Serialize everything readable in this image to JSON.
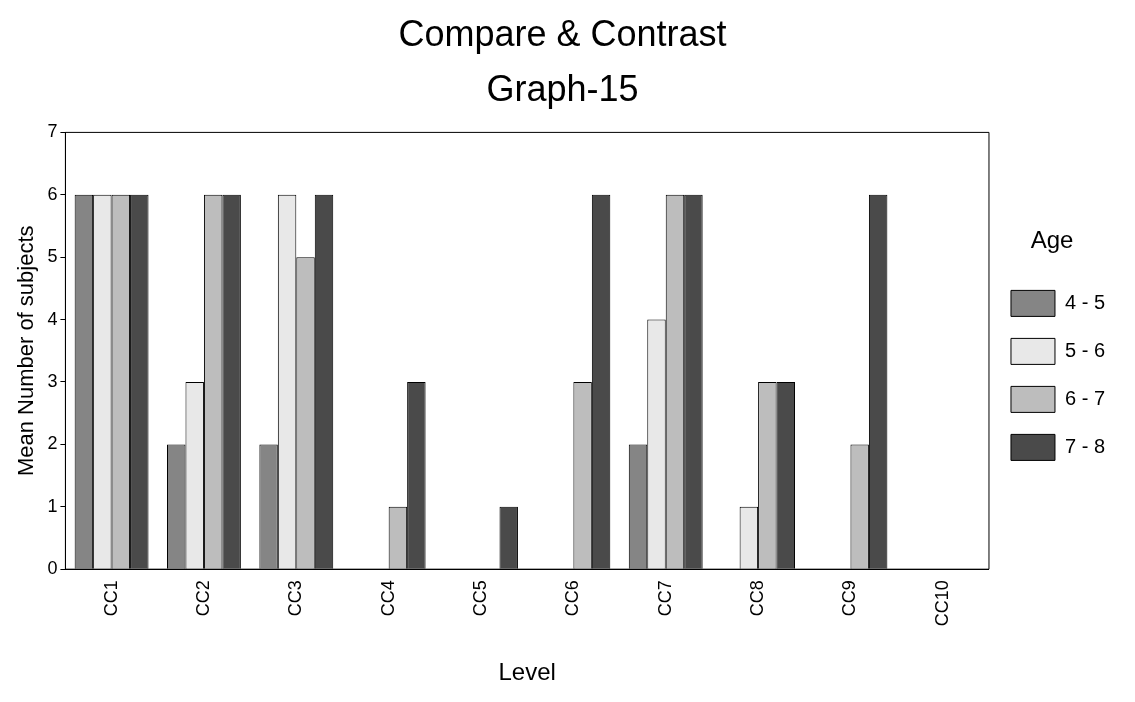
{
  "chart_data": {
    "type": "bar",
    "title": "Compare & Contrast",
    "subtitle": "Graph-15",
    "xlabel": "Level",
    "ylabel": "Mean Number of subjects",
    "legend_title": "Age",
    "categories": [
      "CC1",
      "CC2",
      "CC3",
      "CC4",
      "CC5",
      "CC6",
      "CC7",
      "CC8",
      "CC9",
      "CC10"
    ],
    "series": [
      {
        "name": "4 - 5",
        "color": "#858585",
        "values": [
          6,
          2,
          2,
          0,
          0,
          0,
          2,
          0,
          0,
          0
        ]
      },
      {
        "name": "5 - 6",
        "color": "#e8e8e8",
        "values": [
          6,
          3,
          6,
          0,
          0,
          0,
          4,
          1,
          0,
          0
        ]
      },
      {
        "name": "6 - 7",
        "color": "#bdbdbd",
        "values": [
          6,
          6,
          5,
          1,
          0,
          3,
          6,
          3,
          2,
          0
        ]
      },
      {
        "name": "7 - 8",
        "color": "#4a4a4a",
        "values": [
          6,
          6,
          6,
          3,
          1,
          6,
          6,
          3,
          6,
          0
        ]
      }
    ],
    "ylim": [
      0,
      7
    ],
    "yticks": [
      0,
      1,
      2,
      3,
      4,
      5,
      6,
      7
    ],
    "grid": false,
    "legend": "right"
  }
}
